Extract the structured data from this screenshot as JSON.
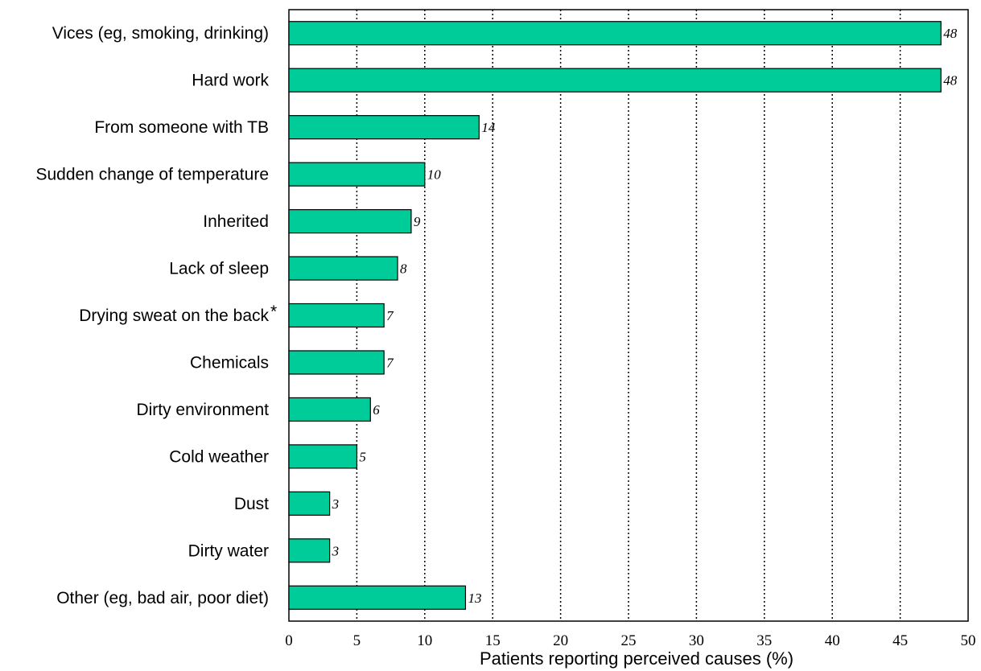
{
  "chart_data": {
    "type": "bar",
    "orientation": "horizontal",
    "categories": [
      "Vices (eg, smoking, drinking)",
      "Hard work",
      "From someone with TB",
      "Sudden change of temperature",
      "Inherited",
      "Lack of sleep",
      "Drying sweat on the back",
      "Chemicals",
      "Dirty environment",
      "Cold weather",
      "Dust",
      "Dirty water",
      "Other (eg, bad air, poor diet)"
    ],
    "category_marks": [
      "",
      "",
      "",
      "",
      "",
      "",
      "*",
      "",
      "",
      "",
      "",
      "",
      ""
    ],
    "values": [
      48,
      48,
      14,
      10,
      9,
      8,
      7,
      7,
      6,
      5,
      3,
      3,
      13
    ],
    "data_labels": [
      "48",
      "48",
      "14",
      "10",
      "9",
      "8",
      "7",
      "7",
      "6",
      "5",
      "3",
      "3",
      "13"
    ],
    "xlabel": "Patients reporting perceived causes (%)",
    "xlim": [
      0,
      50
    ],
    "xticks": [
      0,
      5,
      10,
      15,
      20,
      25,
      30,
      35,
      40,
      45,
      50
    ],
    "grid": "dotted vertical lines",
    "legend": "none",
    "bar_color": "#00cc99",
    "bar_edge_color": "#000000"
  }
}
